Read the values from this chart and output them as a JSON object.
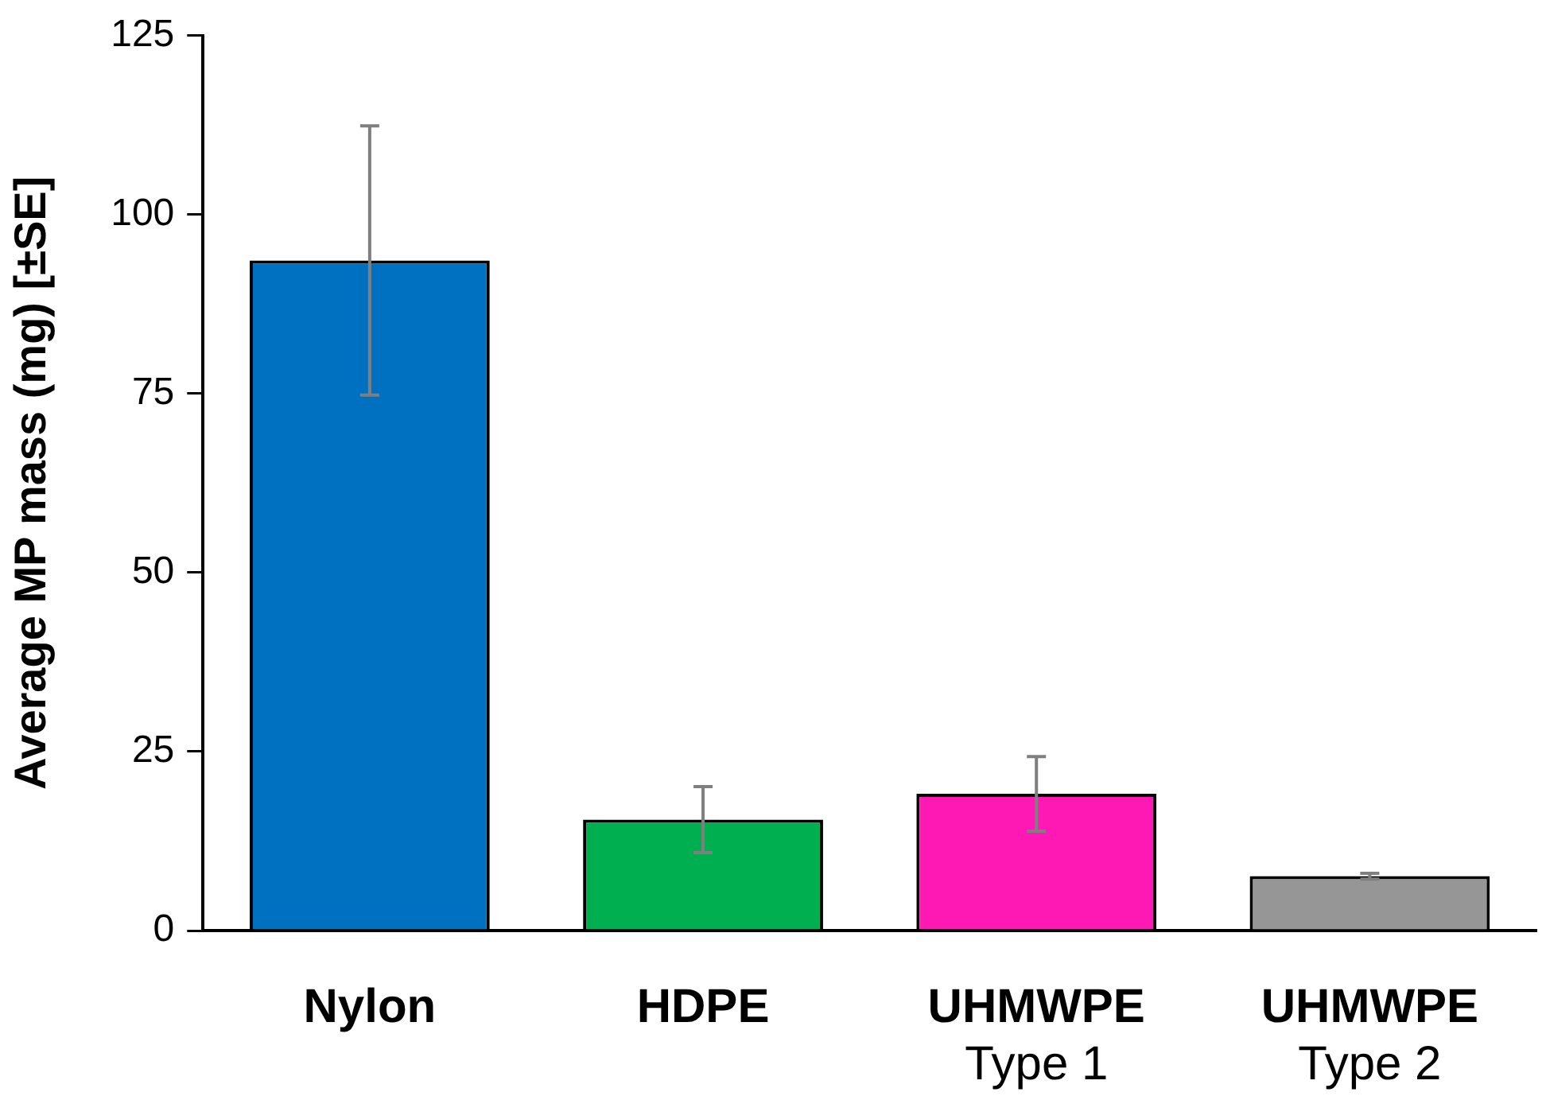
{
  "chart_data": {
    "type": "bar",
    "ylabel": "Average MP mass (mg) [±SE]",
    "categories": [
      "Nylon",
      "HDPE",
      "UHMWPE\nType 1",
      "UHMWPE\nType 2"
    ],
    "values": [
      93.6,
      15.5,
      19.1,
      7.6
    ],
    "colors": [
      "#0070c0",
      "#00b050",
      "#ff19b4",
      "#969696"
    ],
    "errors": [
      18.8,
      4.6,
      5.2,
      0.4
    ],
    "ylim": [
      0,
      125
    ],
    "yticks": [
      0,
      25,
      50,
      75,
      100,
      125
    ],
    "grid": false,
    "legend": false
  }
}
